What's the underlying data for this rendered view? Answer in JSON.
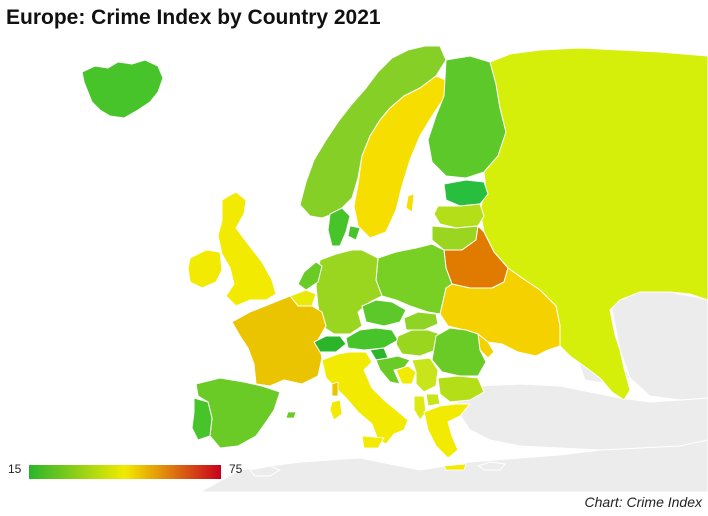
{
  "title": "Europe: Crime Index by Country 2021",
  "legend": {
    "min": "15",
    "max": "75",
    "color_low": "#2bb52b",
    "color_mid": "#f2ea00",
    "color_high": "#c8001e"
  },
  "source": "Chart: Crime Index",
  "colors": {
    "ocean": "#ffffff",
    "non_data_land": "#ececec"
  },
  "countries": [
    {
      "id": "iceland",
      "color": "#46c42a"
    },
    {
      "id": "norway",
      "color": "#86cf27"
    },
    {
      "id": "sweden",
      "color": "#f6df00"
    },
    {
      "id": "finland",
      "color": "#5cc82a"
    },
    {
      "id": "russia",
      "color": "#d5ef0a"
    },
    {
      "id": "estonia",
      "color": "#28bf3f"
    },
    {
      "id": "latvia",
      "color": "#b4df18"
    },
    {
      "id": "lithuania",
      "color": "#9ad620"
    },
    {
      "id": "belarus",
      "color": "#e07b00"
    },
    {
      "id": "ukraine",
      "color": "#f5d100"
    },
    {
      "id": "poland",
      "color": "#78d025"
    },
    {
      "id": "germany",
      "color": "#9ad620"
    },
    {
      "id": "denmark",
      "color": "#46c42a"
    },
    {
      "id": "netherlands",
      "color": "#6acb27"
    },
    {
      "id": "belgium",
      "color": "#e9ea08"
    },
    {
      "id": "uk",
      "color": "#f2ea00"
    },
    {
      "id": "ireland",
      "color": "#f2ea00"
    },
    {
      "id": "france",
      "color": "#eac400"
    },
    {
      "id": "spain",
      "color": "#6acb27"
    },
    {
      "id": "portugal",
      "color": "#46c42a"
    },
    {
      "id": "switzerland",
      "color": "#2bb52b"
    },
    {
      "id": "austria",
      "color": "#46c42a"
    },
    {
      "id": "czechia",
      "color": "#5cc82a"
    },
    {
      "id": "slovakia",
      "color": "#8fd325"
    },
    {
      "id": "hungary",
      "color": "#9ad620"
    },
    {
      "id": "romania",
      "color": "#6acb27"
    },
    {
      "id": "moldova",
      "color": "#f5d100"
    },
    {
      "id": "italy",
      "color": "#f2ea00"
    },
    {
      "id": "slovenia",
      "color": "#2bb52b"
    },
    {
      "id": "croatia",
      "color": "#6acb27"
    },
    {
      "id": "bosnia",
      "color": "#f2ea00"
    },
    {
      "id": "serbia",
      "color": "#c8e41a"
    },
    {
      "id": "bulgaria",
      "color": "#b4df18"
    },
    {
      "id": "albania",
      "color": "#dde910"
    },
    {
      "id": "greece",
      "color": "#f2ea00"
    },
    {
      "id": "macedonia",
      "color": "#c8e41a"
    }
  ]
}
